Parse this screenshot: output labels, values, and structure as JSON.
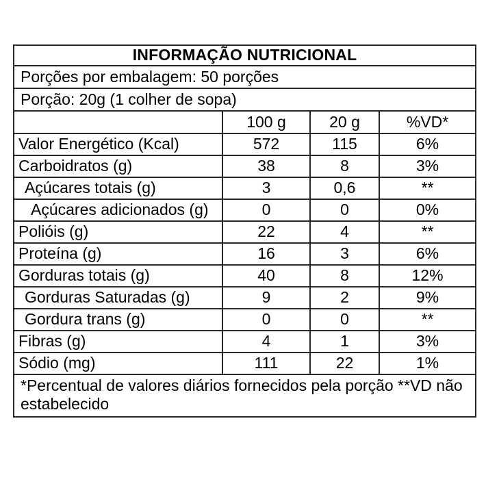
{
  "label": {
    "title": "INFORMAÇÃO NUTRICIONAL",
    "servings_line": "Porções por embalagem: 50 porções",
    "portion_line": "Porção: 20g (1 colher de sopa)",
    "columns": {
      "label": "",
      "per_100g": "100 g",
      "per_portion": "20 g",
      "daily_value": "%VD*"
    },
    "rows": [
      {
        "label": "Valor Energético (Kcal)",
        "indent": 0,
        "per_100g": "572",
        "per_portion": "115",
        "daily_value": "6%"
      },
      {
        "label": "Carboidratos (g)",
        "indent": 0,
        "per_100g": "38",
        "per_portion": "8",
        "daily_value": "3%"
      },
      {
        "label": "Açúcares totais (g)",
        "indent": 1,
        "per_100g": "3",
        "per_portion": "0,6",
        "daily_value": "**"
      },
      {
        "label": "Açúcares adicionados (g)",
        "indent": 2,
        "per_100g": "0",
        "per_portion": "0",
        "daily_value": "0%"
      },
      {
        "label": "Polióis (g)",
        "indent": 0,
        "per_100g": "22",
        "per_portion": "4",
        "daily_value": "**"
      },
      {
        "label": "Proteína (g)",
        "indent": 0,
        "per_100g": "16",
        "per_portion": "3",
        "daily_value": "6%"
      },
      {
        "label": "Gorduras totais (g)",
        "indent": 0,
        "per_100g": "40",
        "per_portion": "8",
        "daily_value": "12%"
      },
      {
        "label": "Gorduras Saturadas (g)",
        "indent": 1,
        "per_100g": "9",
        "per_portion": "2",
        "daily_value": "9%"
      },
      {
        "label": "Gordura trans (g)",
        "indent": 1,
        "per_100g": "0",
        "per_portion": "0",
        "daily_value": "**"
      },
      {
        "label": "Fibras (g)",
        "indent": 0,
        "per_100g": "4",
        "per_portion": "1",
        "daily_value": "3%"
      },
      {
        "label": "Sódio (mg)",
        "indent": 0,
        "per_100g": "111",
        "per_portion": "22",
        "daily_value": "1%"
      }
    ],
    "footnote": "*Percentual de valores diários fornecidos pela porção **VD não estabelecido",
    "colors": {
      "background": "#ffffff",
      "text": "#000000",
      "border": "#262626"
    }
  }
}
